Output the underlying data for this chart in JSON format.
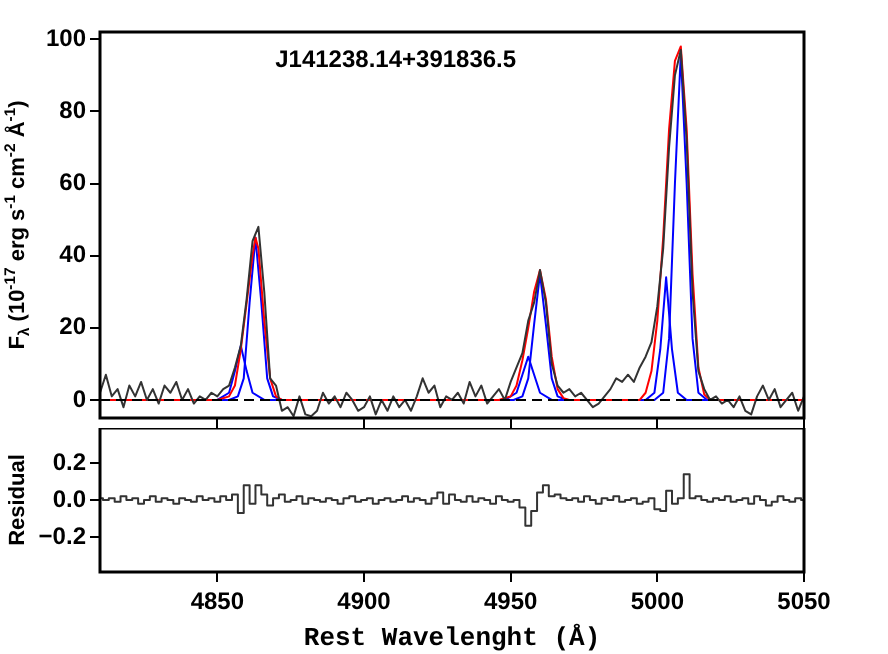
{
  "chart_data": [
    {
      "type": "line",
      "title": "J141238.14+391836.5",
      "ylabel": "F$_{λ}$ (10$^{-17}$ erg s$^{-1}$ cm$^{-2}$ Å$^{-1}$)",
      "x": [
        4810,
        4812,
        4814,
        4816,
        4818,
        4820,
        4822,
        4824,
        4826,
        4828,
        4830,
        4832,
        4834,
        4836,
        4838,
        4840,
        4842,
        4844,
        4846,
        4848,
        4850,
        4852,
        4854,
        4856,
        4858,
        4860,
        4862,
        4864,
        4866,
        4868,
        4870,
        4872,
        4874,
        4876,
        4878,
        4880,
        4882,
        4884,
        4886,
        4888,
        4890,
        4892,
        4894,
        4896,
        4898,
        4900,
        4902,
        4904,
        4906,
        4908,
        4910,
        4912,
        4914,
        4916,
        4918,
        4920,
        4922,
        4924,
        4926,
        4928,
        4930,
        4932,
        4934,
        4936,
        4938,
        4940,
        4942,
        4944,
        4946,
        4948,
        4950,
        4952,
        4954,
        4956,
        4958,
        4960,
        4962,
        4964,
        4966,
        4968,
        4970,
        4972,
        4974,
        4976,
        4978,
        4980,
        4982,
        4984,
        4986,
        4988,
        4990,
        4992,
        4994,
        4996,
        4998,
        5000,
        5002,
        5004,
        5006,
        5008,
        5010,
        5012,
        5014,
        5016,
        5018,
        5020,
        5022,
        5024,
        5026,
        5028,
        5030,
        5032,
        5034,
        5036,
        5038,
        5040,
        5042,
        5044,
        5046,
        5048,
        5050
      ],
      "series": [
        {
          "color": "#333333",
          "values": [
            2,
            7,
            1,
            3,
            -2,
            4,
            1,
            5,
            0,
            3,
            -1,
            4,
            2,
            5,
            0,
            3,
            -1,
            1,
            0,
            2,
            1,
            3,
            4,
            9,
            15,
            28,
            44,
            48,
            30,
            6,
            4,
            -3,
            -2,
            -4.5,
            1,
            -4,
            -4.5,
            -3,
            2,
            -1,
            1,
            -2,
            2,
            0,
            -3,
            -2,
            1,
            -4,
            0,
            -3,
            1,
            -2,
            0,
            -3,
            1,
            6,
            2,
            4,
            -2,
            1,
            0,
            2,
            -1,
            5,
            1,
            4,
            -1,
            1,
            3,
            0,
            5,
            9,
            13,
            22,
            27,
            36,
            27,
            10,
            4,
            2,
            3,
            1,
            2,
            0,
            -2,
            -1,
            1,
            3,
            6,
            5,
            7,
            5,
            9,
            12,
            16,
            26,
            42,
            70,
            90,
            97,
            72,
            30,
            8,
            3,
            0,
            1,
            -1,
            0,
            -2,
            1,
            -3,
            -4,
            1,
            4,
            0,
            3,
            -2,
            0,
            2,
            -3,
            1
          ]
        },
        {
          "color": "#ff0000",
          "x": [
            4810,
            4850,
            4854,
            4856,
            4858,
            4860,
            4862,
            4863,
            4864,
            4866,
            4868,
            4870,
            4872,
            4946,
            4950,
            4952,
            4954,
            4956,
            4958,
            4960,
            4962,
            4964,
            4966,
            4968,
            4970,
            4994,
            4996,
            4998,
            5000,
            5002,
            5004,
            5006,
            5008,
            5010,
            5012,
            5014,
            5016,
            5018,
            5050
          ],
          "values": [
            0,
            0,
            1,
            4,
            14,
            27,
            40,
            45,
            42,
            22,
            6,
            1,
            0,
            0,
            1,
            4,
            11,
            20,
            30,
            36,
            28,
            12,
            3,
            0.5,
            0,
            0,
            2,
            8,
            22,
            45,
            75,
            94,
            98,
            75,
            35,
            9,
            1.5,
            0,
            0
          ]
        },
        {
          "color": "#0000ff",
          "x": [
            4810,
            4854,
            4857,
            4859,
            4861,
            4863,
            4865,
            4867,
            4869,
            4872,
            4951,
            4954,
            4956,
            4958,
            4960,
            4962,
            4964,
            4966,
            4969,
            4999,
            5002,
            5004,
            5006,
            5008,
            5010,
            5012,
            5014,
            5017,
            5050
          ],
          "values": [
            0,
            0,
            1,
            6,
            27,
            45,
            27,
            6,
            1,
            0,
            0,
            1,
            6,
            21,
            35,
            21,
            6,
            1,
            0,
            0,
            2,
            17,
            60,
            96,
            60,
            17,
            2,
            0,
            0
          ]
        },
        {
          "color": "#0000ff",
          "x": [
            4810,
            4850,
            4854,
            4856,
            4858,
            4860,
            4862,
            4866,
            4948,
            4952,
            4954,
            4956,
            4958,
            4960,
            4964,
            4996,
            4999,
            5001,
            5003,
            5005,
            5007,
            5010,
            5050
          ],
          "values": [
            0,
            0,
            2,
            8,
            15,
            8,
            2,
            0,
            0,
            2,
            7,
            12,
            7,
            2,
            0,
            0,
            2,
            14,
            34,
            14,
            2,
            0,
            0
          ]
        }
      ],
      "xlim": [
        4810,
        5050
      ],
      "xticks": [
        4850,
        4900,
        4950,
        5000,
        5050
      ],
      "ylim": [
        -5,
        102
      ],
      "yticks": [
        0,
        20,
        40,
        60,
        80,
        100
      ],
      "tick_labels": "y",
      "ref_lines": [
        {
          "axis": "y",
          "value": 0,
          "color": "#000000",
          "line_style": "dashed"
        }
      ]
    },
    {
      "type": "step",
      "xlabel": "Rest Wavelenght (Å)",
      "ylabel": "Residual",
      "x": [
        4810,
        4812,
        4814,
        4816,
        4818,
        4820,
        4822,
        4824,
        4826,
        4828,
        4830,
        4832,
        4834,
        4836,
        4838,
        4840,
        4842,
        4844,
        4846,
        4848,
        4850,
        4852,
        4854,
        4856,
        4858,
        4860,
        4862,
        4864,
        4866,
        4868,
        4870,
        4872,
        4874,
        4876,
        4878,
        4880,
        4882,
        4884,
        4886,
        4888,
        4890,
        4892,
        4894,
        4896,
        4898,
        4900,
        4902,
        4904,
        4906,
        4908,
        4910,
        4912,
        4914,
        4916,
        4918,
        4920,
        4922,
        4924,
        4926,
        4928,
        4930,
        4932,
        4934,
        4936,
        4938,
        4940,
        4942,
        4944,
        4946,
        4948,
        4950,
        4952,
        4954,
        4956,
        4958,
        4960,
        4962,
        4964,
        4966,
        4968,
        4970,
        4972,
        4974,
        4976,
        4978,
        4980,
        4982,
        4984,
        4986,
        4988,
        4990,
        4992,
        4994,
        4996,
        4998,
        5000,
        5002,
        5004,
        5006,
        5008,
        5010,
        5012,
        5014,
        5016,
        5018,
        5020,
        5022,
        5024,
        5026,
        5028,
        5030,
        5032,
        5034,
        5036,
        5038,
        5040,
        5042,
        5044,
        5046,
        5048,
        5050
      ],
      "series": [
        {
          "color": "#333333",
          "values": [
            0.01,
            0.0,
            0.01,
            -0.01,
            0.02,
            0.0,
            0.01,
            -0.02,
            0.0,
            0.02,
            -0.01,
            0.01,
            0.0,
            -0.02,
            0.01,
            0.0,
            -0.01,
            0.02,
            0.0,
            0.01,
            -0.01,
            0.02,
            0.0,
            0.03,
            -0.07,
            0.08,
            -0.02,
            0.08,
            0.03,
            -0.03,
            0.01,
            0.03,
            -0.01,
            0.0,
            0.02,
            -0.02,
            0.01,
            0.0,
            -0.01,
            0.01,
            0.0,
            -0.02,
            0.01,
            0.02,
            -0.01,
            0.0,
            0.01,
            -0.02,
            0.0,
            0.01,
            -0.01,
            0.0,
            0.02,
            -0.01,
            0.01,
            0.0,
            -0.02,
            0.01,
            0.04,
            -0.02,
            0.03,
            0.0,
            -0.01,
            0.02,
            -0.01,
            0.01,
            0.0,
            -0.02,
            0.02,
            0.0,
            -0.01,
            0.0,
            -0.04,
            -0.14,
            -0.06,
            0.04,
            0.08,
            0.02,
            0.03,
            0.01,
            0.0,
            0.01,
            -0.01,
            0.02,
            0.0,
            -0.02,
            0.01,
            0.0,
            0.02,
            -0.01,
            0.0,
            0.01,
            -0.02,
            -0.01,
            0.01,
            -0.05,
            -0.06,
            0.05,
            -0.02,
            0.01,
            0.14,
            0.01,
            0.02,
            0.0,
            -0.01,
            0.01,
            0.0,
            0.02,
            -0.01,
            0.0,
            0.01,
            -0.02,
            0.02,
            0.0,
            -0.03,
            -0.01,
            0.02,
            0.0,
            -0.01,
            0.01,
            0.0
          ]
        }
      ],
      "xlim": [
        4810,
        5050
      ],
      "xticks": [
        4850,
        4900,
        4950,
        5000,
        5050
      ],
      "ylim": [
        -0.39,
        0.39
      ],
      "yticks": [
        {
          "value": -0.2,
          "label": "−0.2"
        },
        {
          "value": 0,
          "label": "0.0"
        },
        0.2
      ]
    }
  ]
}
